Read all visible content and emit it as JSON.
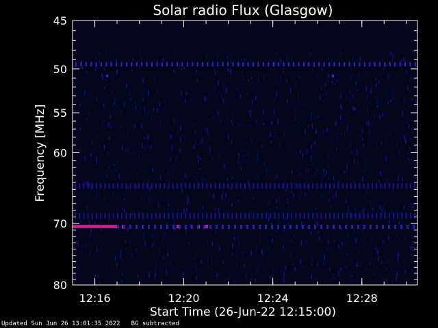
{
  "chart_data": {
    "type": "heatmap",
    "title": "Solar radio Flux (Glasgow)",
    "xlabel": "Start Time (26-Jun-22 12:15:00)",
    "ylabel": "Frequency [MHz]",
    "x_range_minutes": [
      12.25,
      12.508
    ],
    "ylim": [
      45,
      80
    ],
    "y_scale": "log",
    "xticks": [
      "12:16",
      "12:20",
      "12:24",
      "12:28"
    ],
    "xtick_values_hours": [
      12.2667,
      12.3333,
      12.4,
      12.4667
    ],
    "yticks": [
      45,
      50,
      55,
      60,
      70,
      80
    ],
    "ytick_labels": [
      "45",
      "50",
      "55",
      "60",
      "70",
      "80"
    ],
    "colors": {
      "background": "#000000",
      "frame": "#ffffff",
      "low": "#0a0a3a",
      "mid": "#2a2ad0",
      "high": "#c0208c"
    },
    "features": [
      {
        "name": "periodic interference line",
        "frequency_mhz": 49.5,
        "intensity": "mid"
      },
      {
        "name": "strong band",
        "frequency_mhz": 70.5,
        "time_range": [
          "12:15:00",
          "12:17:00"
        ],
        "intensity": "high"
      }
    ]
  },
  "footer": {
    "updated": "Updated Sun Jun 26 13:01:35 2022",
    "note": "BG subtracted"
  }
}
